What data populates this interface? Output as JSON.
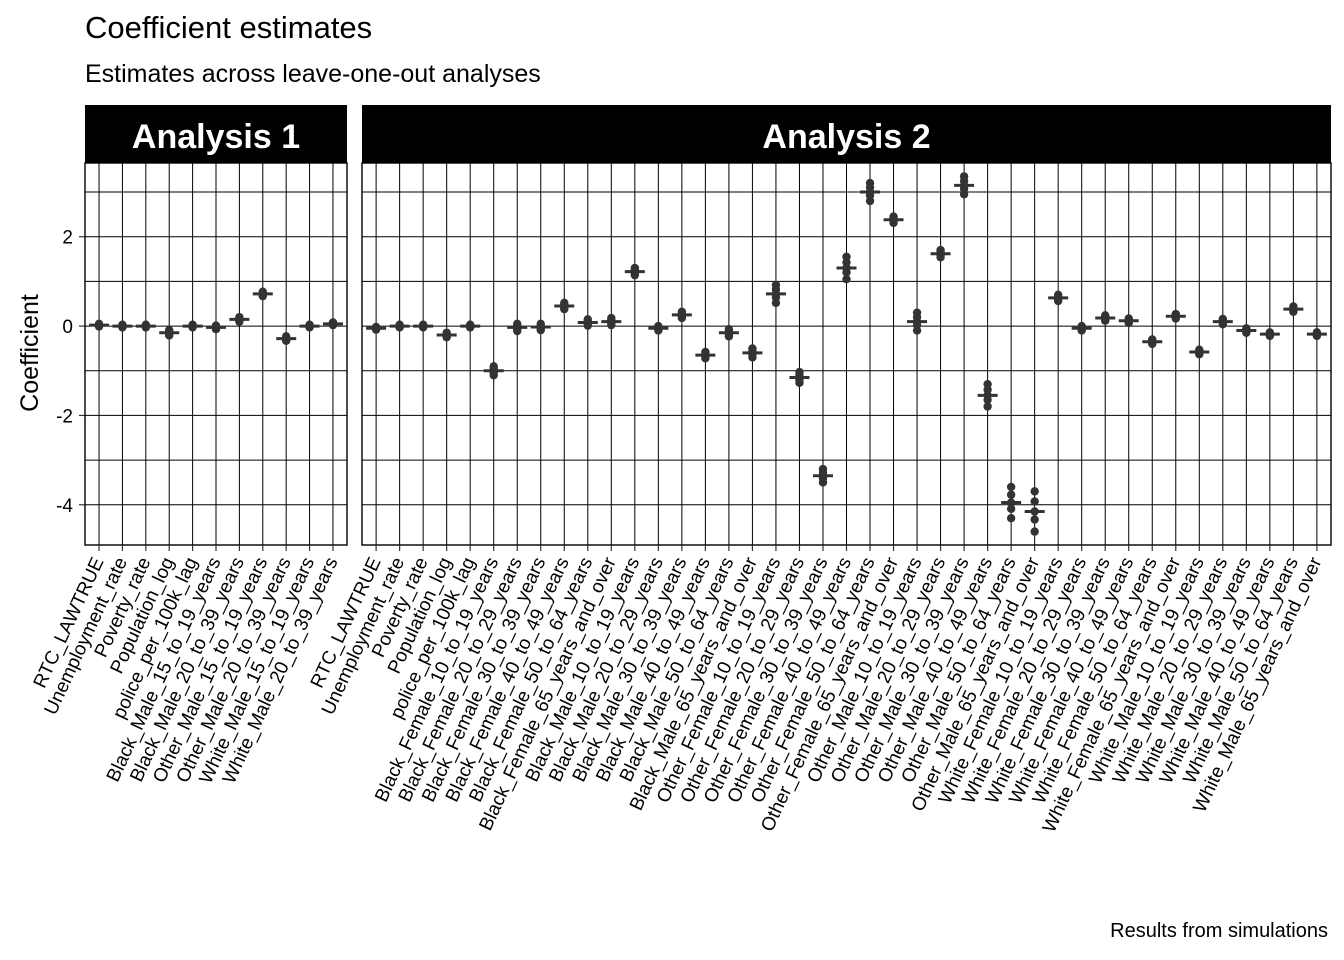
{
  "chart_data": {
    "type": "scatter",
    "title": "Coefficient estimates",
    "subtitle": "Estimates across leave-one-out analyses",
    "caption": "Results from simulations",
    "ylabel": "Coefficient",
    "xlabel": "",
    "ylim": [
      -4.9,
      3.65
    ],
    "yticks": [
      -4,
      -2,
      0,
      2
    ],
    "grid": true,
    "point_color": "#333333",
    "panels": [
      {
        "name": "Analysis 1",
        "categories": [
          "RTC_LAWTRUE",
          "Unemployment_rate",
          "Poverty_rate",
          "Population_log",
          "police_per_100k_lag",
          "Black_Male_15_to_19_years",
          "Black_Male_20_to_39_years",
          "Other_Male_15_to_19_years",
          "Other_Male_20_to_39_years",
          "White_Male_15_to_19_years",
          "White_Male_20_to_39_years"
        ],
        "values": [
          0.02,
          0.0,
          0.0,
          -0.15,
          0.0,
          -0.03,
          0.15,
          0.72,
          -0.28,
          0.0,
          0.05
        ],
        "spread": [
          0.03,
          0.03,
          0.03,
          0.06,
          0.03,
          0.04,
          0.05,
          0.05,
          0.05,
          0.03,
          0.03
        ]
      },
      {
        "name": "Analysis 2",
        "categories": [
          "RTC_LAWTRUE",
          "Unemployment_rate",
          "Poverty_rate",
          "Population_log",
          "police_per_100k_lag",
          "Black_Female_10_to_19_years",
          "Black_Female_20_to_29_years",
          "Black_Female_30_to_39_years",
          "Black_Female_40_to_49_years",
          "Black_Female_50_to_64_years",
          "Black_Female_65_years_and_over",
          "Black_Male_10_to_19_years",
          "Black_Male_20_to_29_years",
          "Black_Male_30_to_39_years",
          "Black_Male_40_to_49_years",
          "Black_Male_50_to_64_years",
          "Black_Male_65_years_and_over",
          "Other_Female_10_to_19_years",
          "Other_Female_20_to_29_years",
          "Other_Female_30_to_39_years",
          "Other_Female_40_to_49_years",
          "Other_Female_50_to_64_years",
          "Other_Female_65_years_and_over",
          "Other_Male_10_to_19_years",
          "Other_Male_20_to_29_years",
          "Other_Male_30_to_39_years",
          "Other_Male_40_to_49_years",
          "Other_Male_50_to_64_years",
          "Other_Male_65_years_and_over",
          "White_Female_10_to_19_years",
          "White_Female_20_to_29_years",
          "White_Female_30_to_39_years",
          "White_Female_40_to_49_years",
          "White_Female_50_to_64_years",
          "White_Female_65_years_and_over",
          "White_Male_10_to_19_years",
          "White_Male_20_to_29_years",
          "White_Male_30_to_39_years",
          "White_Male_40_to_49_years",
          "White_Male_50_to_64_years",
          "White_Male_65_years_and_over"
        ],
        "values": [
          -0.05,
          0.0,
          0.0,
          -0.2,
          0.0,
          -1.0,
          -0.03,
          -0.02,
          0.45,
          0.08,
          0.1,
          1.22,
          -0.05,
          0.25,
          -0.65,
          -0.15,
          -0.6,
          0.72,
          -1.15,
          -3.35,
          1.3,
          3.0,
          2.38,
          0.1,
          1.62,
          3.15,
          -1.55,
          -3.95,
          -4.15,
          0.63,
          -0.05,
          0.18,
          0.12,
          -0.35,
          0.22,
          -0.58,
          0.1,
          -0.1,
          -0.18,
          0.38,
          -0.18
        ],
        "spread": [
          0.03,
          0.03,
          0.03,
          0.05,
          0.03,
          0.1,
          0.08,
          0.07,
          0.07,
          0.07,
          0.08,
          0.08,
          0.05,
          0.07,
          0.07,
          0.08,
          0.1,
          0.2,
          0.12,
          0.15,
          0.25,
          0.2,
          0.07,
          0.2,
          0.08,
          0.2,
          0.25,
          0.35,
          0.45,
          0.07,
          0.05,
          0.06,
          0.05,
          0.05,
          0.05,
          0.05,
          0.06,
          0.05,
          0.04,
          0.06,
          0.04
        ]
      }
    ]
  }
}
